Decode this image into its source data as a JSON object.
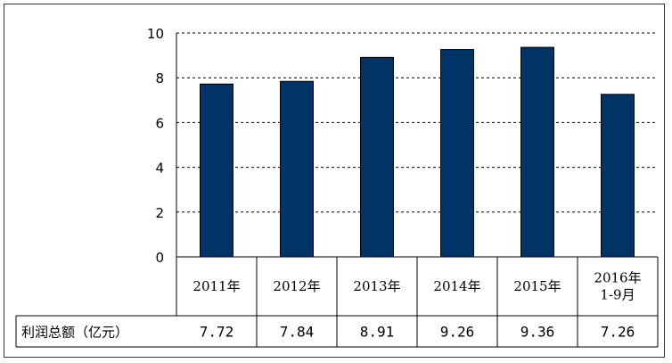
{
  "chart_data": {
    "type": "bar",
    "categories": [
      "2011年",
      "2012年",
      "2013年",
      "2014年",
      "2015年",
      "2016年\n1-9月"
    ],
    "values": [
      7.72,
      7.84,
      8.91,
      9.26,
      9.36,
      7.26
    ],
    "value_labels": [
      "7.72",
      "7.84",
      "8.91",
      "9.26",
      "9.36",
      "7.26"
    ],
    "row_label": "利润总额（亿元）",
    "ylim": [
      0,
      10
    ],
    "yticks": [
      "0",
      "2",
      "4",
      "6",
      "8",
      "10"
    ],
    "grid": true,
    "bar_color": "#003366",
    "table": true
  }
}
